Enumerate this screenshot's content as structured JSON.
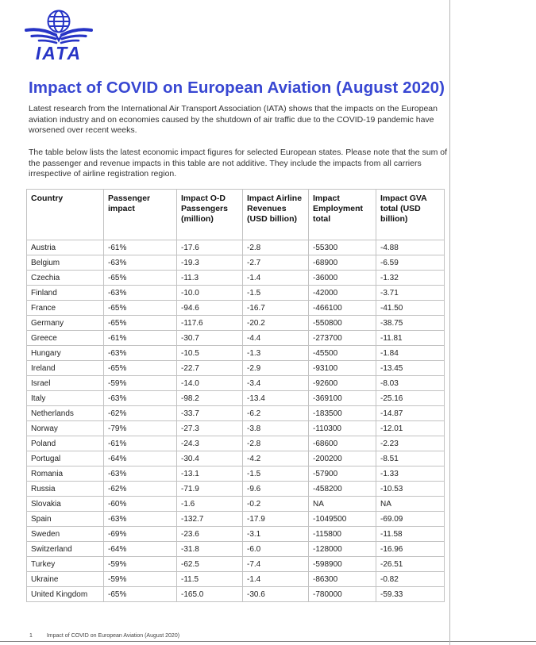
{
  "colors": {
    "brand_blue": "#2734c6",
    "title_blue": "#3847d2",
    "body_text": "#333333",
    "table_border": "#c2c2c2"
  },
  "logo": {
    "wordmark": "IATA",
    "icon": "iata-globe-wings-logo"
  },
  "page": {
    "title": "Impact of COVID on European Aviation (August 2020)",
    "intro_para_1": "Latest research from the International Air Transport Association (IATA) shows that the impacts on the European aviation industry and on economies caused by the shutdown of air traffic due to the COVID-19 pandemic have worsened over recent weeks.",
    "intro_para_2": "The table below lists the latest economic impact figures for selected European states. Please note that the sum of the passenger and revenue impacts in this table are not additive. They include the impacts from all carriers irrespective of airline registration region."
  },
  "table": {
    "headers": [
      "Country",
      "Passenger impact",
      "Impact O-D Passengers (million)",
      "Impact Airline Revenues (USD billion)",
      "Impact Employment total",
      "Impact GVA total (USD billion)"
    ],
    "rows": [
      [
        "Austria",
        "-61%",
        "-17.6",
        "-2.8",
        "-55300",
        "-4.88"
      ],
      [
        "Belgium",
        "-63%",
        "-19.3",
        "-2.7",
        "-68900",
        "-6.59"
      ],
      [
        "Czechia",
        "-65%",
        "-11.3",
        "-1.4",
        "-36000",
        "-1.32"
      ],
      [
        "Finland",
        "-63%",
        "-10.0",
        "-1.5",
        "-42000",
        "-3.71"
      ],
      [
        "France",
        "-65%",
        "-94.6",
        "-16.7",
        "-466100",
        "-41.50"
      ],
      [
        "Germany",
        "-65%",
        "-117.6",
        "-20.2",
        "-550800",
        "-38.75"
      ],
      [
        "Greece",
        "-61%",
        "-30.7",
        "-4.4",
        "-273700",
        "-11.81"
      ],
      [
        "Hungary",
        "-63%",
        "-10.5",
        "-1.3",
        "-45500",
        "-1.84"
      ],
      [
        "Ireland",
        "-65%",
        "-22.7",
        "-2.9",
        "-93100",
        "-13.45"
      ],
      [
        "Israel",
        "-59%",
        "-14.0",
        "-3.4",
        "-92600",
        "-8.03"
      ],
      [
        "Italy",
        "-63%",
        "-98.2",
        "-13.4",
        "-369100",
        "-25.16"
      ],
      [
        "Netherlands",
        "-62%",
        "-33.7",
        "-6.2",
        "-183500",
        "-14.87"
      ],
      [
        "Norway",
        "-79%",
        "-27.3",
        "-3.8",
        "-110300",
        "-12.01"
      ],
      [
        "Poland",
        "-61%",
        "-24.3",
        "-2.8",
        "-68600",
        "-2.23"
      ],
      [
        "Portugal",
        "-64%",
        "-30.4",
        "-4.2",
        "-200200",
        "-8.51"
      ],
      [
        "Romania",
        "-63%",
        "-13.1",
        "-1.5",
        "-57900",
        "-1.33"
      ],
      [
        "Russia",
        "-62%",
        "-71.9",
        "-9.6",
        "-458200",
        "-10.53"
      ],
      [
        "Slovakia",
        "-60%",
        "-1.6",
        "-0.2",
        "NA",
        "NA"
      ],
      [
        "Spain",
        "-63%",
        "-132.7",
        "-17.9",
        "-1049500",
        "-69.09"
      ],
      [
        "Sweden",
        "-69%",
        "-23.6",
        "-3.1",
        "-115800",
        "-11.58"
      ],
      [
        "Switzerland",
        "-64%",
        "-31.8",
        "-6.0",
        "-128000",
        "-16.96"
      ],
      [
        "Turkey",
        "-59%",
        "-62.5",
        "-7.4",
        "-598900",
        "-26.51"
      ],
      [
        "Ukraine",
        "-59%",
        "-11.5",
        "-1.4",
        "-86300",
        "-0.82"
      ],
      [
        "United Kingdom",
        "-65%",
        "-165.0",
        "-30.6",
        "-780000",
        "-59.33"
      ]
    ]
  },
  "footer": {
    "page_number": "1",
    "text": "Impact of COVID on European Aviation (August 2020)"
  }
}
